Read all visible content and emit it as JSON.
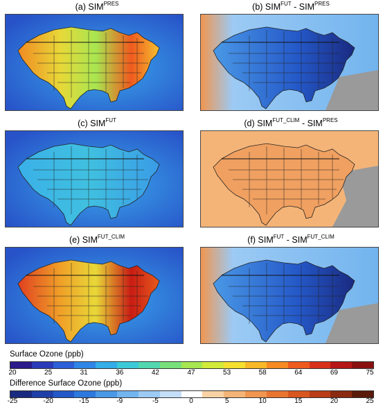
{
  "panels": [
    {
      "id": "a",
      "label": "(a) SIM",
      "sup": "PRES",
      "suffix": "",
      "suffix_sup": "",
      "type": "abs",
      "level": "high"
    },
    {
      "id": "b",
      "label": "(b) SIM",
      "sup": "FUT",
      "suffix": " - SIM",
      "suffix_sup": "PRES",
      "type": "diff",
      "level": "strong-neg"
    },
    {
      "id": "c",
      "label": "(c) SIM",
      "sup": "FUT",
      "suffix": "",
      "suffix_sup": "",
      "type": "abs",
      "level": "low"
    },
    {
      "id": "d",
      "label": "(d) SIM",
      "sup": "FUT_CLIM",
      "suffix": " - SIM",
      "suffix_sup": "PRES",
      "type": "diff",
      "level": "pos"
    },
    {
      "id": "e",
      "label": "(e) SIM",
      "sup": "FUT_CLIM",
      "suffix": "",
      "suffix_sup": "",
      "type": "abs",
      "level": "very-high"
    },
    {
      "id": "f",
      "label": "(f) SIM",
      "sup": "FUT",
      "suffix": " - SIM",
      "suffix_sup": "FUT_CLIM",
      "type": "diff",
      "level": "strong-neg"
    }
  ],
  "colorbar_abs": {
    "title": "Surface Ozone (ppb)",
    "ticks": [
      "20",
      "25",
      "31",
      "36",
      "42",
      "47",
      "53",
      "58",
      "64",
      "69",
      "75"
    ],
    "colors": [
      "#2a1a8a",
      "#2b3ab8",
      "#2d5fd6",
      "#2f86e6",
      "#34aee8",
      "#3ccad8",
      "#52d8b0",
      "#78e07a",
      "#a6e650",
      "#d2ea3a",
      "#f5e030",
      "#f8b828",
      "#f78a22",
      "#ef5a1e",
      "#d9321a",
      "#b51616",
      "#8a1010"
    ]
  },
  "colorbar_diff": {
    "title": "Difference Surface Ozone (ppb)",
    "ticks": [
      "-25",
      "-20",
      "-15",
      "-9",
      "-5",
      "0",
      "5",
      "10",
      "15",
      "20",
      "25"
    ],
    "colors": [
      "#1a2a80",
      "#1f3fa8",
      "#2458c8",
      "#2d78dc",
      "#4a98e6",
      "#72b4ee",
      "#9ccaf4",
      "#c4def8",
      "#ffffff",
      "#f8d2a4",
      "#f4b478",
      "#f09650",
      "#e87430",
      "#d85620",
      "#b83c18",
      "#8a2a10",
      "#5a1a0a"
    ]
  }
}
